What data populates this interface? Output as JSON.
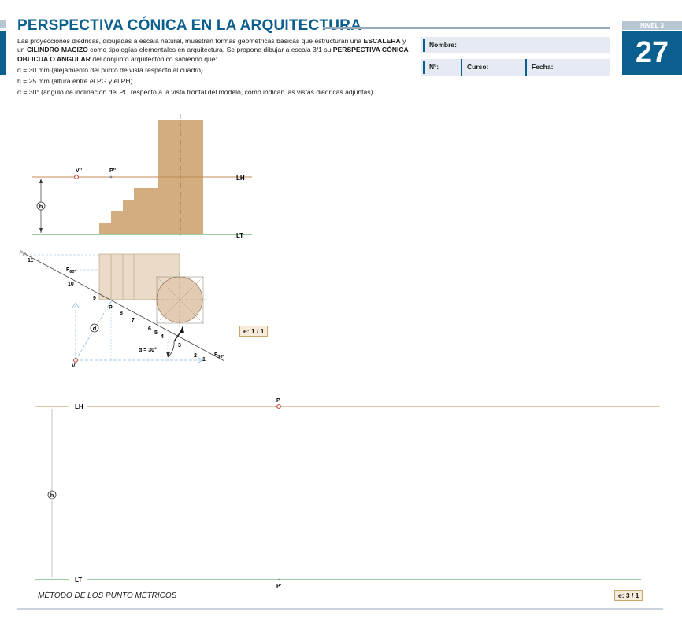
{
  "header": {
    "title": "PERSPECTIVA CÓNICA EN LA ARQUITECTURA",
    "level_label": "NIVEL 3",
    "sheet_number": "27"
  },
  "intro": {
    "p1_a": "Las proyecciones diédricas, dibujadas a escala natural, muestran formas geométricas básicas que estructuran una ",
    "p1_b": "ESCALERA",
    "p1_c": " y un ",
    "p1_d": "CILINDRO MACIZO",
    "p1_e": " como tipologías elementales en arquitectura. Se propone dibujar a escala 3/1 su ",
    "p1_f": "PERSPECTIVA CÓNICA OBLICUA O ANGULAR",
    "p1_g": " del conjunto arquitectónico sabiendo que:",
    "d_line": "d = 30 mm (alejamiento del punto de vista respecto al cuadro).",
    "h_line": "h = 25 mm (altura entre el PG y el PH).",
    "alpha_line": "α = 30°  (ángulo de inclinación del PC respecto a la vista frontal del modelo, como indican las vistas diédricas adjuntas)."
  },
  "form": {
    "name_label": "Nombre:",
    "number_label": "Nº:",
    "course_label": "Curso:",
    "date_label": "Fecha:"
  },
  "diagram_top": {
    "lh": "LH",
    "lt": "LT",
    "v2": "V''",
    "p2": "P''",
    "h": "h",
    "pc": "PC",
    "f60": "F",
    "f60_sub": "60º",
    "f30": "F",
    "f30_sub": "30º",
    "p1": "P'",
    "v1": "V'",
    "d": "d",
    "alpha_text": "α  = 30°",
    "nums": [
      "1",
      "2",
      "3",
      "4",
      "5",
      "6",
      "7",
      "8",
      "9",
      "10",
      "11"
    ],
    "scale": "e: 1 / 1"
  },
  "diagram_bottom": {
    "lh": "LH",
    "lt": "LT",
    "p": "P",
    "p1": "P'",
    "h": "h",
    "scale": "e: 3 / 1"
  },
  "footer": {
    "method": "MÉTODO DE LOS PUNTO MÉTRICOS"
  },
  "colors": {
    "accent": "#0b5f8e",
    "horizon_line": "#c08a5a",
    "ground_line": "#3a9a3a",
    "solid_fill": "#d3ad7f",
    "plan_fill": "#eadbc8"
  }
}
